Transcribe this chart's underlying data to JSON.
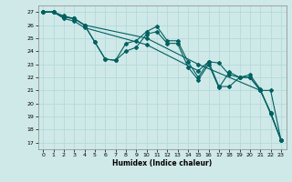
{
  "xlabel": "Humidex (Indice chaleur)",
  "ylabel": "",
  "bg_color": "#cfe8e8",
  "grid_color": "#b0d8d8",
  "line_color": "#006060",
  "xlim": [
    -0.5,
    23.5
  ],
  "ylim": [
    16.5,
    27.5
  ],
  "yticks": [
    17,
    18,
    19,
    20,
    21,
    22,
    23,
    24,
    25,
    26,
    27
  ],
  "xticks": [
    0,
    1,
    2,
    3,
    4,
    5,
    6,
    7,
    8,
    9,
    10,
    11,
    12,
    13,
    14,
    15,
    16,
    17,
    18,
    19,
    20,
    21,
    22,
    23
  ],
  "series": [
    {
      "x": [
        0,
        1,
        2,
        3,
        4,
        10,
        15,
        21,
        22,
        23
      ],
      "y": [
        27,
        27,
        26.7,
        26.5,
        26.0,
        25.0,
        23.0,
        21.0,
        19.3,
        17.2
      ]
    },
    {
      "x": [
        0,
        1,
        2,
        3,
        4,
        5,
        6,
        7,
        8,
        9,
        10,
        11,
        12,
        13,
        14,
        15,
        16,
        17,
        18,
        19,
        20,
        21,
        22,
        23
      ],
      "y": [
        27,
        27,
        26.6,
        26.5,
        26.0,
        24.7,
        23.4,
        23.3,
        24.6,
        24.8,
        25.5,
        25.9,
        24.8,
        24.8,
        23.2,
        22.0,
        23.2,
        21.3,
        21.3,
        22.0,
        22.0,
        21.0,
        19.3,
        17.2
      ]
    },
    {
      "x": [
        0,
        1,
        2,
        3,
        4,
        5,
        6,
        7,
        8,
        9,
        10,
        11,
        12,
        13,
        14,
        15,
        16,
        17,
        18,
        19,
        20,
        21,
        22,
        23
      ],
      "y": [
        27,
        27,
        26.6,
        26.5,
        26.0,
        24.7,
        23.4,
        23.3,
        24.0,
        24.3,
        25.3,
        25.5,
        24.6,
        24.6,
        22.8,
        21.8,
        23.0,
        21.2,
        22.4,
        22.0,
        22.2,
        21.1,
        19.2,
        17.2
      ]
    },
    {
      "x": [
        0,
        1,
        2,
        3,
        4,
        10,
        15,
        16,
        17,
        18,
        19,
        20,
        21,
        22,
        23
      ],
      "y": [
        27,
        27,
        26.5,
        26.3,
        25.8,
        24.5,
        22.5,
        23.2,
        23.1,
        22.2,
        22.0,
        22.0,
        21.0,
        21.0,
        17.2
      ]
    }
  ]
}
